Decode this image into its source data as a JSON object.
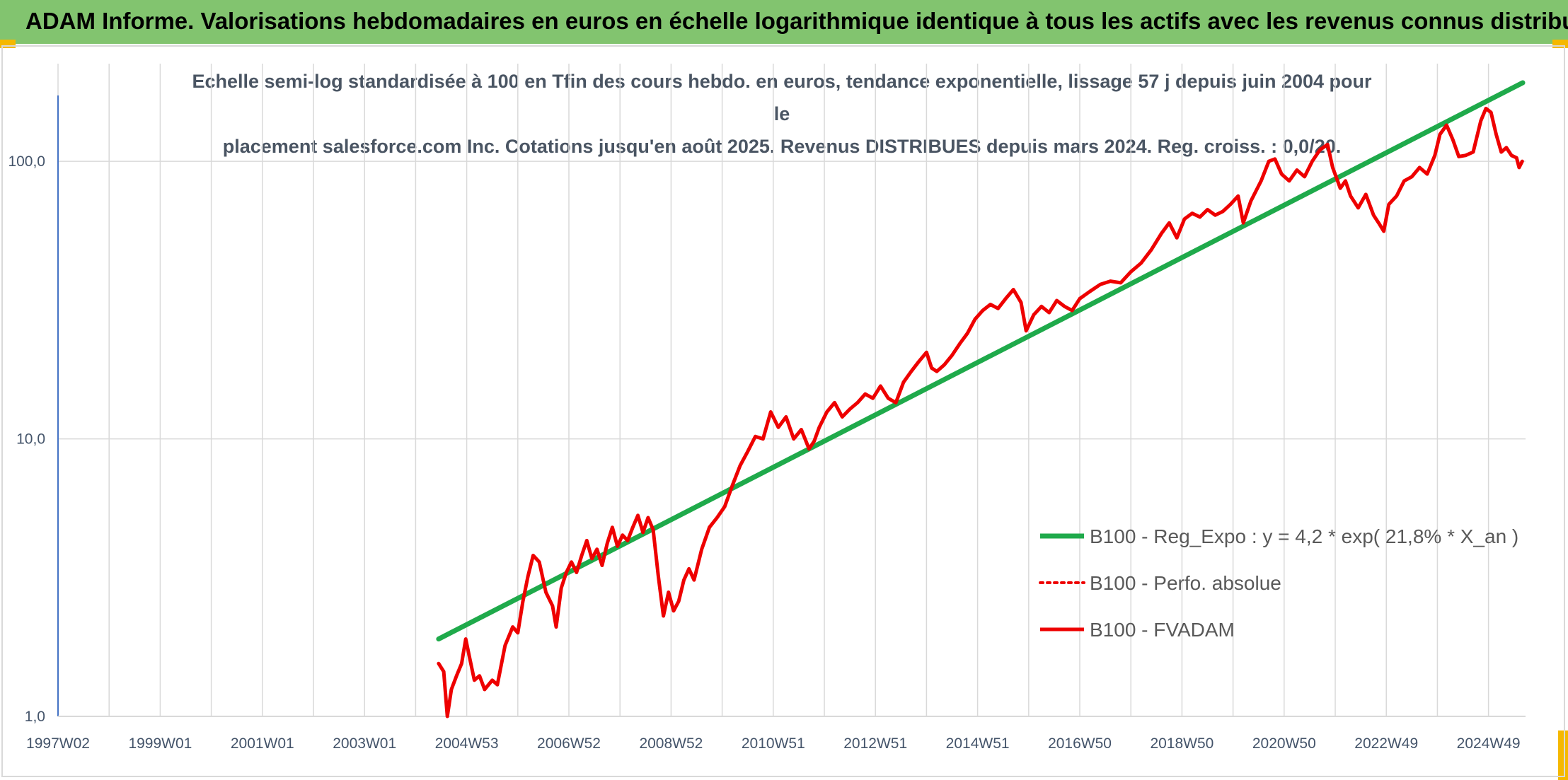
{
  "header": {
    "title": "ADAM Informe. Valorisations hebdomadaires en euros en échelle logarithmique identique à tous les actifs avec les revenus connus distribués"
  },
  "colors": {
    "banner": "#82c46f",
    "accent_corner": "#f5b800",
    "regression": "#1faa4b",
    "fvadam": "#ee0000",
    "perfo": "#ee0000",
    "grid": "#d9d9d9",
    "axis": "#4472c4"
  },
  "chart_data": {
    "type": "line",
    "title": "Echelle semi-log standardisée à 100 en Tfin des cours hebdo. en euros, tendance exponentielle, lissage 57 j depuis juin 2004 pour le placement salesforce.com Inc. Cotations jusqu'en août 2025. Revenus DISTRIBUES depuis mars 2024. Reg. croiss. : 0,0/20.",
    "title_lines": [
      "Echelle semi-log standardisée à 100 en Tfin des cours hebdo. en euros, tendance exponentielle, lissage 57 j depuis juin 2004 pour le",
      "placement salesforce.com Inc. Cotations jusqu'en août 2025. Revenus DISTRIBUES depuis mars 2024. Reg. croiss. : 0,0/20."
    ],
    "y_scale": "log",
    "ylim": [
      1,
      200
    ],
    "y_ticks": [
      {
        "value": 1,
        "label": "1,0"
      },
      {
        "value": 10,
        "label": "10,0"
      },
      {
        "value": 100,
        "label": "100,0"
      }
    ],
    "xlim": [
      1997.0,
      2025.67
    ],
    "x_ticks": [
      {
        "year": 1997.0,
        "label": "1997W02"
      },
      {
        "year": 1999.0,
        "label": "1999W01"
      },
      {
        "year": 2001.0,
        "label": "2001W01"
      },
      {
        "year": 2003.0,
        "label": "2003W01"
      },
      {
        "year": 2005.0,
        "label": "2004W53"
      },
      {
        "year": 2007.0,
        "label": "2006W52"
      },
      {
        "year": 2009.0,
        "label": "2008W52"
      },
      {
        "year": 2011.0,
        "label": "2010W51"
      },
      {
        "year": 2013.0,
        "label": "2012W51"
      },
      {
        "year": 2015.0,
        "label": "2014W51"
      },
      {
        "year": 2017.0,
        "label": "2016W50"
      },
      {
        "year": 2019.0,
        "label": "2018W50"
      },
      {
        "year": 2021.0,
        "label": "2020W50"
      },
      {
        "year": 2023.0,
        "label": "2022W49"
      },
      {
        "year": 2025.0,
        "label": "2024W49"
      }
    ],
    "grid": true,
    "legend_position": "lower-right",
    "series": [
      {
        "name": "B100 - Reg_Expo : y = 4,2 * exp( 21,8% *  X_an )",
        "style": "solid-thick",
        "color": "#1faa4b",
        "points": [
          [
            2004.45,
            1.9
          ],
          [
            2025.67,
            192
          ]
        ]
      },
      {
        "name": "B100 - Perfo. absolue",
        "style": "dotted",
        "color": "#ee0000",
        "points": []
      },
      {
        "name": "B100 - FVADAM",
        "style": "solid",
        "color": "#ee0000",
        "points": [
          [
            2004.45,
            1.55
          ],
          [
            2004.55,
            1.45
          ],
          [
            2004.62,
            1.0
          ],
          [
            2004.7,
            1.25
          ],
          [
            2004.8,
            1.4
          ],
          [
            2004.9,
            1.55
          ],
          [
            2004.98,
            1.9
          ],
          [
            2005.05,
            1.65
          ],
          [
            2005.15,
            1.35
          ],
          [
            2005.25,
            1.4
          ],
          [
            2005.35,
            1.25
          ],
          [
            2005.5,
            1.35
          ],
          [
            2005.6,
            1.3
          ],
          [
            2005.75,
            1.8
          ],
          [
            2005.9,
            2.1
          ],
          [
            2006.0,
            2.0
          ],
          [
            2006.1,
            2.6
          ],
          [
            2006.2,
            3.2
          ],
          [
            2006.3,
            3.8
          ],
          [
            2006.42,
            3.6
          ],
          [
            2006.55,
            2.8
          ],
          [
            2006.68,
            2.5
          ],
          [
            2006.75,
            2.1
          ],
          [
            2006.85,
            2.9
          ],
          [
            2006.95,
            3.3
          ],
          [
            2007.05,
            3.6
          ],
          [
            2007.15,
            3.3
          ],
          [
            2007.25,
            3.8
          ],
          [
            2007.35,
            4.3
          ],
          [
            2007.45,
            3.7
          ],
          [
            2007.55,
            4.0
          ],
          [
            2007.65,
            3.5
          ],
          [
            2007.75,
            4.2
          ],
          [
            2007.85,
            4.8
          ],
          [
            2007.95,
            4.1
          ],
          [
            2008.05,
            4.5
          ],
          [
            2008.15,
            4.3
          ],
          [
            2008.25,
            4.8
          ],
          [
            2008.35,
            5.3
          ],
          [
            2008.45,
            4.6
          ],
          [
            2008.55,
            5.2
          ],
          [
            2008.65,
            4.7
          ],
          [
            2008.75,
            3.2
          ],
          [
            2008.85,
            2.3
          ],
          [
            2008.95,
            2.8
          ],
          [
            2009.05,
            2.4
          ],
          [
            2009.15,
            2.6
          ],
          [
            2009.25,
            3.1
          ],
          [
            2009.35,
            3.4
          ],
          [
            2009.45,
            3.1
          ],
          [
            2009.6,
            4.0
          ],
          [
            2009.75,
            4.8
          ],
          [
            2009.9,
            5.2
          ],
          [
            2010.05,
            5.7
          ],
          [
            2010.2,
            6.8
          ],
          [
            2010.35,
            8.0
          ],
          [
            2010.5,
            9.0
          ],
          [
            2010.65,
            10.2
          ],
          [
            2010.8,
            10.0
          ],
          [
            2010.95,
            12.5
          ],
          [
            2011.1,
            11.0
          ],
          [
            2011.25,
            12.0
          ],
          [
            2011.4,
            10.0
          ],
          [
            2011.55,
            10.8
          ],
          [
            2011.7,
            9.2
          ],
          [
            2011.8,
            9.8
          ],
          [
            2011.9,
            11.0
          ],
          [
            2012.05,
            12.5
          ],
          [
            2012.2,
            13.5
          ],
          [
            2012.35,
            12.0
          ],
          [
            2012.5,
            12.8
          ],
          [
            2012.65,
            13.5
          ],
          [
            2012.8,
            14.5
          ],
          [
            2012.95,
            14.0
          ],
          [
            2013.1,
            15.5
          ],
          [
            2013.25,
            14.0
          ],
          [
            2013.4,
            13.5
          ],
          [
            2013.55,
            16.0
          ],
          [
            2013.7,
            17.5
          ],
          [
            2013.85,
            19.0
          ],
          [
            2014.0,
            20.5
          ],
          [
            2014.1,
            18.0
          ],
          [
            2014.2,
            17.5
          ],
          [
            2014.35,
            18.5
          ],
          [
            2014.5,
            20.0
          ],
          [
            2014.65,
            22.0
          ],
          [
            2014.8,
            24.0
          ],
          [
            2014.95,
            27.0
          ],
          [
            2015.1,
            29.0
          ],
          [
            2015.25,
            30.5
          ],
          [
            2015.4,
            29.5
          ],
          [
            2015.55,
            32.0
          ],
          [
            2015.7,
            34.5
          ],
          [
            2015.85,
            31.0
          ],
          [
            2015.95,
            24.5
          ],
          [
            2016.1,
            28.0
          ],
          [
            2016.25,
            30.0
          ],
          [
            2016.4,
            28.5
          ],
          [
            2016.55,
            31.5
          ],
          [
            2016.7,
            30.0
          ],
          [
            2016.85,
            29.0
          ],
          [
            2017.0,
            32.0
          ],
          [
            2017.2,
            34.0
          ],
          [
            2017.4,
            36.0
          ],
          [
            2017.6,
            37.0
          ],
          [
            2017.8,
            36.5
          ],
          [
            2018.0,
            40.0
          ],
          [
            2018.2,
            43.0
          ],
          [
            2018.4,
            48.0
          ],
          [
            2018.6,
            55.0
          ],
          [
            2018.75,
            60.0
          ],
          [
            2018.9,
            53.0
          ],
          [
            2019.05,
            62.0
          ],
          [
            2019.2,
            65.0
          ],
          [
            2019.35,
            63.0
          ],
          [
            2019.5,
            67.0
          ],
          [
            2019.65,
            64.0
          ],
          [
            2019.8,
            66.0
          ],
          [
            2019.95,
            70.0
          ],
          [
            2020.1,
            75.0
          ],
          [
            2020.2,
            60.0
          ],
          [
            2020.35,
            72.0
          ],
          [
            2020.55,
            85.0
          ],
          [
            2020.7,
            100.0
          ],
          [
            2020.82,
            102.0
          ],
          [
            2020.95,
            90.0
          ],
          [
            2021.1,
            85.0
          ],
          [
            2021.25,
            93.0
          ],
          [
            2021.4,
            88.0
          ],
          [
            2021.55,
            100.0
          ],
          [
            2021.7,
            110.0
          ],
          [
            2021.85,
            115.0
          ],
          [
            2021.95,
            95.0
          ],
          [
            2022.1,
            80.0
          ],
          [
            2022.2,
            85.0
          ],
          [
            2022.3,
            75.0
          ],
          [
            2022.45,
            68.0
          ],
          [
            2022.6,
            76.0
          ],
          [
            2022.75,
            64.0
          ],
          [
            2022.85,
            60.0
          ],
          [
            2022.95,
            56.0
          ],
          [
            2023.05,
            70.0
          ],
          [
            2023.2,
            75.0
          ],
          [
            2023.35,
            85.0
          ],
          [
            2023.5,
            88.0
          ],
          [
            2023.65,
            95.0
          ],
          [
            2023.8,
            90.0
          ],
          [
            2023.95,
            105.0
          ],
          [
            2024.05,
            125.0
          ],
          [
            2024.18,
            135.0
          ],
          [
            2024.3,
            120.0
          ],
          [
            2024.42,
            104.0
          ],
          [
            2024.55,
            105.0
          ],
          [
            2024.7,
            108.0
          ],
          [
            2024.85,
            140.0
          ],
          [
            2024.95,
            155.0
          ],
          [
            2025.05,
            150.0
          ],
          [
            2025.15,
            125.0
          ],
          [
            2025.25,
            108.0
          ],
          [
            2025.35,
            112.0
          ],
          [
            2025.45,
            105.0
          ],
          [
            2025.55,
            103.0
          ],
          [
            2025.6,
            95.0
          ],
          [
            2025.66,
            100.0
          ]
        ]
      }
    ]
  }
}
